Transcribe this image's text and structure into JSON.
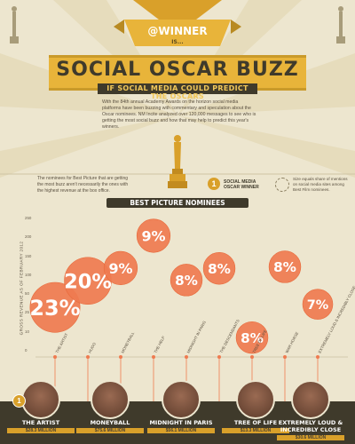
{
  "header": {
    "tag_line1": "@WINNER",
    "tag_line2": "IS...",
    "title": "SOCIAL OSCAR BUZZ",
    "subtitle": "IF SOCIAL MEDIA COULD PREDICT THE OSCARS",
    "intro": "With the 84th annual Academy Awards on the horizon social media platforms have been buzzing with commentary and speculation about the Oscar nominees. NM Incite analyzed over 120,000 messages to see who is getting the most social buzz and how that may help to predict this year's winners."
  },
  "legend": {
    "left_note": "The nominees for Best Picture that are getting the most buzz aren't necessarily the ones with the highest revenue at the box office.",
    "winner_label": "SOCIAL MEDIA OSCAR WINNER",
    "size_note": "Size equals share of mentions on social media sites among Best Film nominees.",
    "winner_badge": "1"
  },
  "section_title": "BEST PICTURE NOMINEES",
  "colors": {
    "bubble": "#ef7b50",
    "bubble_stroke": "#e8693a",
    "gold": "#d9a02a",
    "dark": "#3f3a2b",
    "bg": "#ede6cf"
  },
  "chart_data": {
    "type": "scatter",
    "title": "BEST PICTURE NOMINEES",
    "ylabel": "GROSS REVENUE AS OF FEBRUARY 2012",
    "yscale": "log",
    "yticks": [
      "250",
      "200",
      "150",
      "100",
      "50",
      "25",
      "10",
      "0"
    ],
    "ylim": [
      0,
      250
    ],
    "categories": [
      "THE ARTIST",
      "HUGO",
      "MONEYBALL",
      "THE HELP",
      "MIDNIGHT IN PARIS",
      "THE DESCENDANTS",
      "TREE OF LIFE",
      "WAR HORSE",
      "EXTREMELY LOUD & INCREDIBLY CLOSE"
    ],
    "values": [
      23,
      20,
      9,
      9,
      8,
      8,
      8,
      8,
      7
    ],
    "value_labels": [
      "23%",
      "20%",
      "9%",
      "9%",
      "8%",
      "8%",
      "8%",
      "8%",
      "7%"
    ],
    "gross": [
      28.3,
      55,
      75.6,
      169.6,
      56.1,
      75,
      13.3,
      78,
      30.6
    ],
    "winner": "THE ARTIST"
  },
  "films": [
    {
      "title": "THE ARTIST",
      "gross": "$28.3 MILLION"
    },
    {
      "title": "MONEYBALL",
      "gross": "$75.6 MILLION"
    },
    {
      "title": "MIDNIGHT IN PARIS",
      "gross": "$56.1 MILLION"
    },
    {
      "title": "TREE OF LIFE",
      "gross": "$13.3 MILLION"
    },
    {
      "title": "EXTREMELY LOUD & INCREDIBLY CLOSE",
      "gross": "$30.6 MILLION"
    }
  ]
}
